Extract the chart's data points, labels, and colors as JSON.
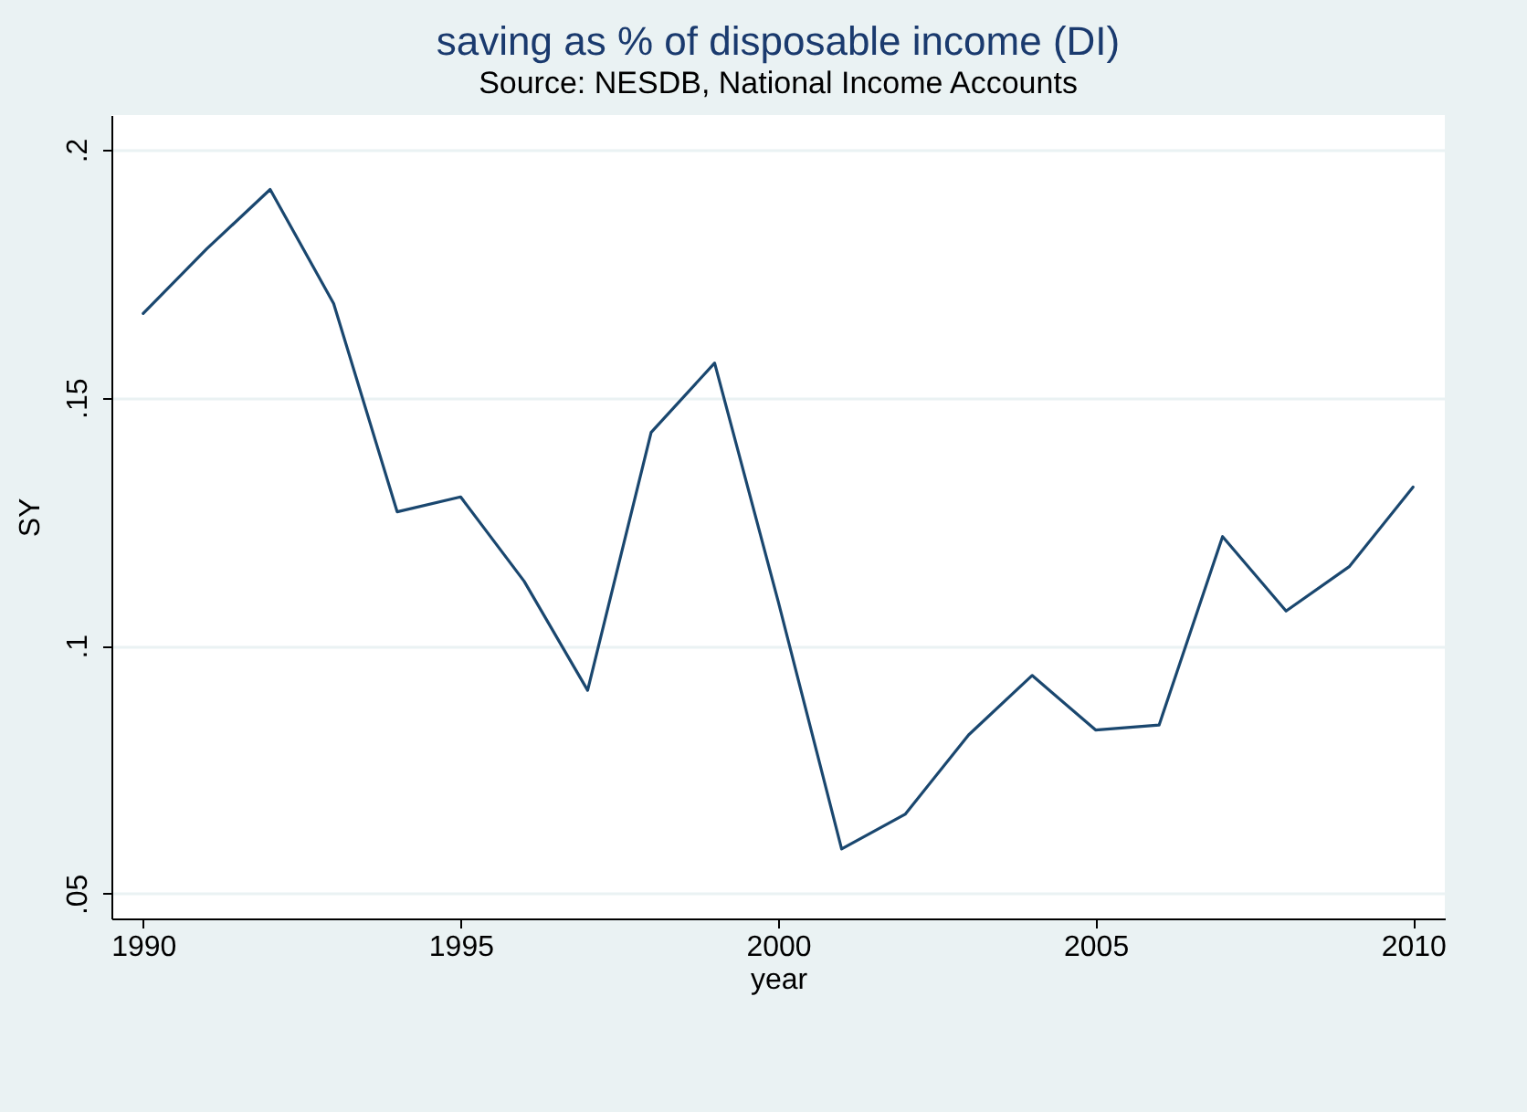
{
  "chart_data": {
    "type": "line",
    "title": "saving as % of disposable income (DI)",
    "subtitle": "Source: NESDB, National Income Accounts",
    "xlabel": "year",
    "ylabel": "SY",
    "x": [
      1990,
      1991,
      1992,
      1993,
      1994,
      1995,
      1996,
      1997,
      1998,
      1999,
      2000,
      2001,
      2002,
      2003,
      2004,
      2005,
      2006,
      2007,
      2008,
      2009,
      2010
    ],
    "series": [
      {
        "color": "#1a476f",
        "values": [
          0.167,
          0.18,
          0.192,
          0.169,
          0.127,
          0.13,
          0.113,
          0.091,
          0.143,
          0.157,
          0.109,
          0.059,
          0.066,
          0.082,
          0.094,
          0.083,
          0.084,
          0.122,
          0.107,
          0.116,
          0.132
        ]
      }
    ],
    "xlim": [
      1989.5,
      2010.5
    ],
    "xticks": [
      1990,
      1995,
      2000,
      2005,
      2010
    ],
    "ylim": [
      0.045,
      0.207
    ],
    "yticks": [
      {
        "value": 0.05,
        "label": ".05"
      },
      {
        "value": 0.1,
        "label": ".1"
      },
      {
        "value": 0.15,
        "label": ".15"
      },
      {
        "value": 0.2,
        "label": ".2"
      }
    ],
    "grid": "y",
    "marker": "none"
  }
}
